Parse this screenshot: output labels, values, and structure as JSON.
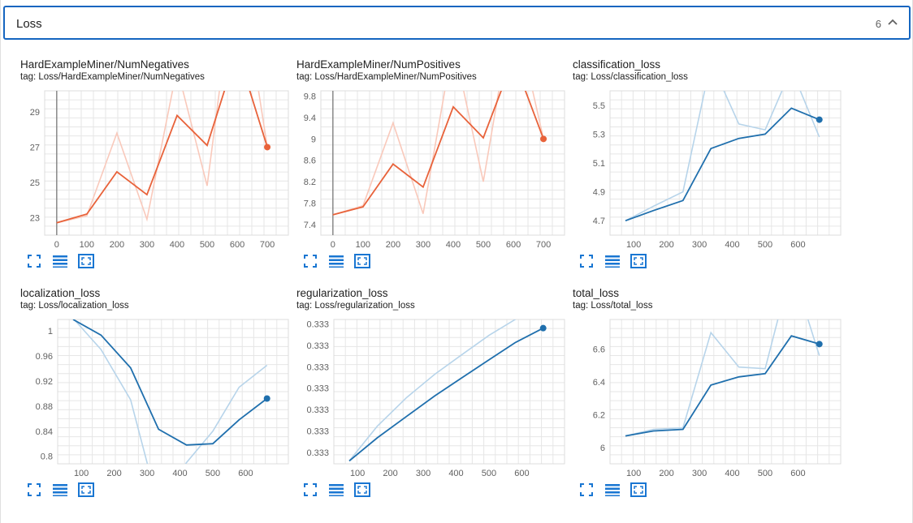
{
  "section": {
    "title": "Loss",
    "count": "6",
    "collapse_icon": "chevron-up-icon"
  },
  "colors": {
    "accent": "#1565c0",
    "orange": "#e8623a",
    "orange_light": "#f9c9bb",
    "blue": "#1f6fad",
    "blue_light": "#b7d4ea",
    "grid": "#e0e0e0"
  },
  "tools": [
    "fit-to-data-icon",
    "toggle-log-scale-icon",
    "fullscreen-icon"
  ],
  "chart_data": [
    {
      "type": "line",
      "title": "HardExampleMiner/NumNegatives",
      "tag": "tag: Loss/HardExampleMiner/NumNegatives",
      "color": "orange",
      "x_ticks": [
        "0",
        "100",
        "200",
        "300",
        "400",
        "500",
        "600",
        "700"
      ],
      "y_ticks": [
        "23",
        "25",
        "27",
        "29"
      ],
      "xlim": [
        -40,
        770
      ],
      "ylim": [
        22.0,
        30.2
      ],
      "vertical_line_at": 0,
      "series": [
        {
          "values_x": [
            0,
            100,
            200,
            300,
            400,
            500,
            600,
            700
          ],
          "values_y": [
            22.7,
            23.1,
            27.8,
            22.9,
            31.5,
            24.8,
            38.0,
            27.0
          ],
          "smoothed": false
        },
        {
          "values_x": [
            0,
            100,
            200,
            300,
            400,
            500,
            600,
            700
          ],
          "values_y": [
            22.7,
            23.2,
            25.6,
            24.3,
            28.8,
            27.1,
            32.5,
            27.0
          ],
          "smoothed": true
        }
      ]
    },
    {
      "type": "line",
      "title": "HardExampleMiner/NumPositives",
      "tag": "tag: Loss/HardExampleMiner/NumPositives",
      "color": "orange",
      "x_ticks": [
        "0",
        "100",
        "200",
        "300",
        "400",
        "500",
        "600",
        "700"
      ],
      "y_ticks": [
        "7.4",
        "7.8",
        "8.2",
        "8.6",
        "9",
        "9.4",
        "9.8"
      ],
      "xlim": [
        -40,
        770
      ],
      "ylim": [
        7.2,
        9.9
      ],
      "vertical_line_at": 0,
      "series": [
        {
          "values_x": [
            0,
            100,
            200,
            300,
            400,
            500,
            600,
            700
          ],
          "values_y": [
            7.58,
            7.75,
            9.3,
            7.6,
            10.8,
            8.2,
            11.5,
            9.0
          ],
          "smoothed": false
        },
        {
          "values_x": [
            0,
            100,
            200,
            300,
            400,
            500,
            600,
            700
          ],
          "values_y": [
            7.58,
            7.73,
            8.53,
            8.1,
            9.6,
            9.02,
            10.5,
            9.0
          ],
          "smoothed": true
        }
      ]
    },
    {
      "type": "line",
      "title": "classification_loss",
      "tag": "tag: Loss/classification_loss",
      "color": "blue",
      "x_ticks": [
        "100",
        "200",
        "300",
        "400",
        "500",
        "600"
      ],
      "y_ticks": [
        "4.7",
        "4.9",
        "5.1",
        "5.3",
        "5.5"
      ],
      "xlim": [
        28,
        730
      ],
      "ylim": [
        4.6,
        5.6
      ],
      "series": [
        {
          "values_x": [
            75,
            160,
            250,
            335,
            420,
            500,
            580,
            665
          ],
          "values_y": [
            4.7,
            4.8,
            4.9,
            5.8,
            5.37,
            5.33,
            5.75,
            5.28
          ],
          "smoothed": false
        },
        {
          "values_x": [
            75,
            160,
            250,
            335,
            420,
            500,
            580,
            665
          ],
          "values_y": [
            4.7,
            4.77,
            4.84,
            5.2,
            5.27,
            5.3,
            5.48,
            5.4
          ],
          "smoothed": true
        }
      ]
    },
    {
      "type": "line",
      "title": "localization_loss",
      "tag": "tag: Loss/localization_loss",
      "color": "blue",
      "x_ticks": [
        "100",
        "200",
        "300",
        "400",
        "500",
        "600"
      ],
      "y_ticks": [
        "0.8",
        "0.84",
        "0.88",
        "0.92",
        "0.96",
        "1"
      ],
      "xlim": [
        28,
        730
      ],
      "ylim": [
        0.788,
        1.018
      ],
      "series": [
        {
          "values_x": [
            75,
            160,
            250,
            335,
            420,
            500,
            580,
            665
          ],
          "values_y": [
            1.02,
            0.97,
            0.89,
            0.72,
            0.79,
            0.84,
            0.91,
            0.945
          ],
          "smoothed": false
        },
        {
          "values_x": [
            75,
            160,
            250,
            335,
            420,
            500,
            580,
            665
          ],
          "values_y": [
            1.018,
            0.993,
            0.941,
            0.843,
            0.818,
            0.82,
            0.858,
            0.892
          ],
          "smoothed": true
        }
      ]
    },
    {
      "type": "line",
      "title": "regularization_loss",
      "tag": "tag: Loss/regularization_loss",
      "color": "blue",
      "x_ticks": [
        "100",
        "200",
        "300",
        "400",
        "500",
        "600"
      ],
      "y_ticks": [
        "0.333",
        "0.333",
        "0.333",
        "0.333",
        "0.333",
        "0.333",
        "0.333"
      ],
      "xlim": [
        28,
        730
      ],
      "ylim": [
        0,
        100
      ],
      "series": [
        {
          "values_x": [
            75,
            160,
            250,
            335,
            420,
            500,
            580,
            665
          ],
          "values_y": [
            2,
            26,
            46,
            62,
            76,
            89,
            100,
            112
          ],
          "smoothed": false
        },
        {
          "values_x": [
            75,
            160,
            250,
            335,
            420,
            500,
            580,
            665
          ],
          "values_y": [
            2,
            18,
            33,
            47,
            60,
            72,
            84,
            94
          ],
          "smoothed": true
        }
      ]
    },
    {
      "type": "line",
      "title": "total_loss",
      "tag": "tag: Loss/total_loss",
      "color": "blue",
      "x_ticks": [
        "100",
        "200",
        "300",
        "400",
        "500",
        "600"
      ],
      "y_ticks": [
        "6",
        "6.2",
        "6.4",
        "6.6"
      ],
      "xlim": [
        28,
        730
      ],
      "ylim": [
        5.9,
        6.78
      ],
      "series": [
        {
          "values_x": [
            75,
            160,
            250,
            335,
            420,
            500,
            580,
            665
          ],
          "values_y": [
            6.07,
            6.11,
            6.12,
            6.7,
            6.49,
            6.48,
            7.1,
            6.56
          ],
          "smoothed": false
        },
        {
          "values_x": [
            75,
            160,
            250,
            335,
            420,
            500,
            580,
            665
          ],
          "values_y": [
            6.07,
            6.1,
            6.11,
            6.38,
            6.43,
            6.45,
            6.68,
            6.63
          ],
          "smoothed": true
        }
      ]
    }
  ]
}
